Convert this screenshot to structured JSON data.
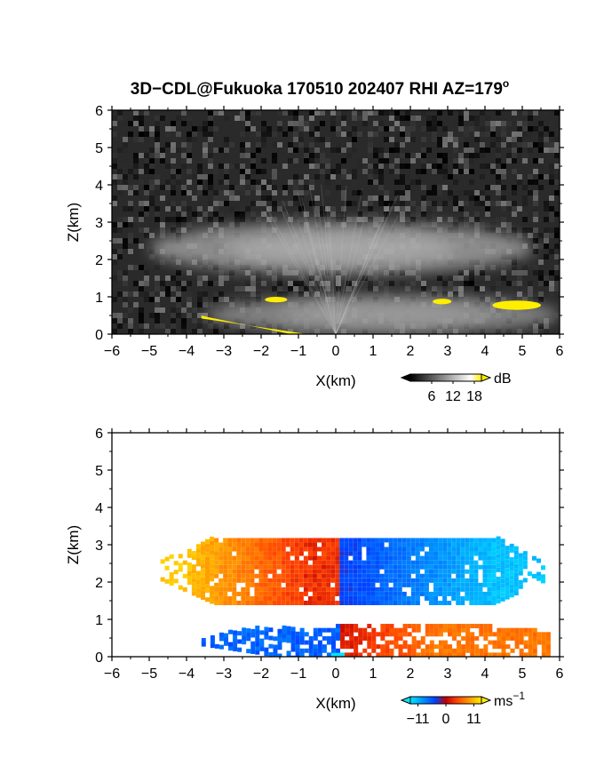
{
  "title_main": "3D−CDL@Fukuoka 170510 202407 RHI AZ=179",
  "title_sup": "o",
  "chart_data": [
    {
      "type": "heatmap",
      "variable": "reflectivity",
      "xlabel": "X(km)",
      "ylabel": "Z(km)",
      "xlim": [
        -6,
        6
      ],
      "ylim": [
        0,
        6
      ],
      "xticks": [
        "−6",
        "−5",
        "−4",
        "−3",
        "−2",
        "−1",
        "0",
        "1",
        "2",
        "3",
        "4",
        "5",
        "6"
      ],
      "yticks": [
        "0",
        "1",
        "2",
        "3",
        "4",
        "5",
        "6"
      ],
      "colorbar": {
        "unit": "dB",
        "ticks": [
          "6",
          "12",
          "18"
        ],
        "range": [
          0,
          20
        ]
      },
      "cloud_layers": [
        {
          "x": [
            -5.0,
            5.3
          ],
          "z": [
            1.6,
            3.0
          ],
          "peak_db": 13
        },
        {
          "x": [
            -3.5,
            6.0
          ],
          "z": [
            0.0,
            1.05
          ],
          "peak_db": 12
        }
      ],
      "strong_echo_patches": [
        {
          "x": [
            -1.9,
            -1.3
          ],
          "z": [
            0.85,
            1.0
          ],
          "db": 19
        },
        {
          "x": [
            2.6,
            3.1
          ],
          "z": [
            0.8,
            0.95
          ],
          "db": 19
        },
        {
          "x": [
            4.2,
            5.5
          ],
          "z": [
            0.65,
            0.9
          ],
          "db": 19
        },
        {
          "x": [
            -3.6,
            -0.9
          ],
          "z": [
            0.0,
            0.5
          ],
          "db": 19
        }
      ],
      "colors": {
        "low": "#000000",
        "high": "#ffffff",
        "over": "#ffee00"
      }
    },
    {
      "type": "heatmap",
      "variable": "doppler_velocity",
      "xlabel": "X(km)",
      "ylabel": "Z(km)",
      "xlim": [
        -6,
        6
      ],
      "ylim": [
        0,
        6
      ],
      "xticks": [
        "−6",
        "−5",
        "−4",
        "−3",
        "−2",
        "−1",
        "0",
        "1",
        "2",
        "3",
        "4",
        "5",
        "6"
      ],
      "yticks": [
        "0",
        "1",
        "2",
        "3",
        "4",
        "5",
        "6"
      ],
      "colorbar": {
        "unit": "ms",
        "unit_sup": "−1",
        "ticks": [
          "−11",
          "0",
          "11"
        ],
        "range": [
          -14,
          14
        ]
      },
      "upper_layer": {
        "x": [
          -4.7,
          5.6
        ],
        "z": [
          1.5,
          3.3
        ],
        "velocity_west_edge": 12,
        "velocity_east_edge": -9
      },
      "lower_layer": {
        "x": [
          -3.6,
          5.7
        ],
        "z": [
          0.0,
          1.0
        ],
        "velocity_west_side": -6,
        "velocity_east_side": 7
      },
      "colors": {
        "neg_strong": "#00e5ff",
        "neg": "#0040ff",
        "zero": "#c00000",
        "pos": "#ff4000",
        "pos_strong": "#ffee00"
      }
    }
  ]
}
